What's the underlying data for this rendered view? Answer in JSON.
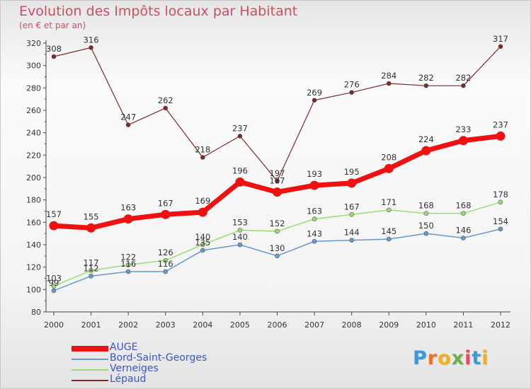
{
  "chart_data": {
    "type": "line",
    "title": "Evolution des Impôts locaux par Habitant",
    "subtitle": "(en € et par an)",
    "xlabel": "",
    "ylabel": "",
    "x": [
      "2000",
      "2001",
      "2002",
      "2003",
      "2004",
      "2005",
      "2006",
      "2007",
      "2008",
      "2009",
      "2010",
      "2011",
      "2012"
    ],
    "ylim": [
      80,
      320
    ],
    "yticks": [
      80,
      100,
      120,
      140,
      160,
      180,
      200,
      220,
      240,
      260,
      280,
      300,
      320
    ],
    "grid": false,
    "legend_position": "bottom-left",
    "series": [
      {
        "name": "AUGE",
        "color": "#ee1111",
        "values": [
          157,
          155,
          163,
          167,
          169,
          196,
          187,
          193,
          195,
          208,
          224,
          233,
          237
        ],
        "labels": [
          "157",
          "155",
          "163",
          "167",
          "169",
          "196",
          "187",
          "193",
          "195",
          "208",
          "224",
          "233",
          "237"
        ]
      },
      {
        "name": "Bord-Saint-Georges",
        "color": "#6699cc",
        "values": [
          99,
          112,
          116,
          116,
          135,
          140,
          130,
          143,
          144,
          145,
          150,
          146,
          154
        ],
        "labels": [
          "99",
          "112",
          "116",
          "116",
          "135",
          "140",
          "130",
          "143",
          "144",
          "145",
          "150",
          "146",
          "154"
        ]
      },
      {
        "name": "Verneiges",
        "color": "#99dd77",
        "values": [
          103,
          117,
          122,
          126,
          140,
          153,
          152,
          163,
          167,
          171,
          168,
          168,
          178
        ],
        "labels": [
          "103",
          "117",
          "122",
          "126",
          "140",
          "153",
          "152",
          "163",
          "167",
          "171",
          "168",
          "168",
          "178"
        ]
      },
      {
        "name": "Lépaud",
        "color": "#7a2a2a",
        "values": [
          308,
          316,
          247,
          262,
          218,
          237,
          197,
          269,
          276,
          284,
          282,
          282,
          317
        ],
        "labels": [
          "308",
          "316",
          "247",
          "262",
          "218",
          "237",
          "197",
          "269",
          "276",
          "284",
          "282",
          "282",
          "317"
        ]
      }
    ]
  },
  "logo": {
    "text": "Proxiti",
    "letter_colors": [
      "#3a9ad9",
      "#e8702a",
      "#f0b020",
      "#6ab04c",
      "#e84a5f",
      "#3a9ad9",
      "#f0b020"
    ]
  }
}
